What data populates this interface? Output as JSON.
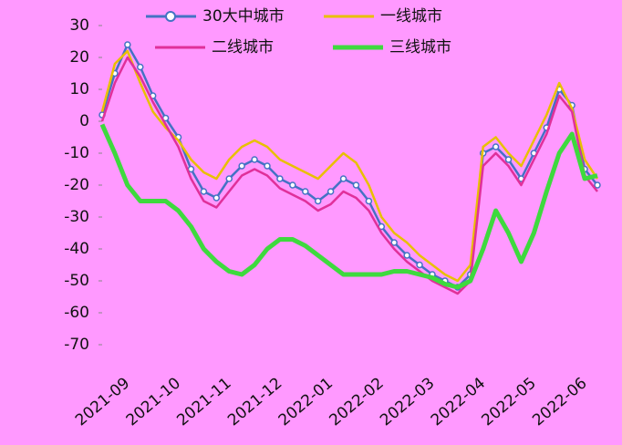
{
  "chart_data": {
    "type": "line",
    "categories": [
      null,
      null,
      "2021-09",
      null,
      null,
      null,
      "2021-10",
      null,
      null,
      null,
      "2021-11",
      null,
      null,
      null,
      "2021-12",
      null,
      null,
      null,
      "2022-01",
      null,
      null,
      null,
      "2022-02",
      null,
      null,
      null,
      "2022-03",
      null,
      null,
      null,
      "2022-04",
      null,
      null,
      null,
      "2022-05",
      null,
      null,
      null,
      "2022-06",
      null
    ],
    "series": [
      {
        "name": "30大中城市",
        "color": "#4472c4",
        "values": [
          2,
          15,
          24,
          17,
          8,
          1,
          -5,
          -15,
          -22,
          -24,
          -18,
          -14,
          -12,
          -14,
          -18,
          -20,
          -22,
          -25,
          -22,
          -18,
          -20,
          -25,
          -33,
          -38,
          -42,
          -45,
          -48,
          -50,
          -52,
          -48,
          -10,
          -8,
          -12,
          -18,
          -10,
          -2,
          10,
          5,
          -15,
          -20
        ]
      },
      {
        "name": "一线城市",
        "color": "#e8c000",
        "values": [
          3,
          18,
          22,
          12,
          3,
          -2,
          -6,
          -12,
          -16,
          -18,
          -12,
          -8,
          -6,
          -8,
          -12,
          -14,
          -16,
          -18,
          -14,
          -10,
          -13,
          -20,
          -30,
          -35,
          -38,
          -42,
          -45,
          -48,
          -50,
          -45,
          -8,
          -5,
          -10,
          -14,
          -6,
          2,
          12,
          4,
          -12,
          -18
        ]
      },
      {
        "name": "二线城市",
        "color": "#e0309a",
        "values": [
          0,
          12,
          20,
          14,
          6,
          -1,
          -8,
          -18,
          -25,
          -27,
          -22,
          -17,
          -15,
          -17,
          -21,
          -23,
          -25,
          -28,
          -26,
          -22,
          -24,
          -28,
          -35,
          -40,
          -44,
          -47,
          -50,
          -52,
          -54,
          -50,
          -14,
          -10,
          -14,
          -20,
          -12,
          -4,
          8,
          3,
          -17,
          -22
        ]
      },
      {
        "name": "三线城市",
        "color": "#3ed93e",
        "values": [
          -1,
          -10,
          -20,
          -25,
          -25,
          -25,
          -28,
          -33,
          -40,
          -44,
          -47,
          -48,
          -45,
          -40,
          -37,
          -37,
          -39,
          -42,
          -45,
          -48,
          -48,
          -48,
          -48,
          -47,
          -47,
          -48,
          -49,
          -51,
          -52,
          -50,
          -40,
          -28,
          -35,
          -44,
          -35,
          -22,
          -10,
          -4,
          -18,
          -17
        ]
      }
    ],
    "ylim": [
      -70,
      30
    ],
    "yticks": [
      30,
      20,
      10,
      0,
      -10,
      -20,
      -30,
      -40,
      -50,
      -60,
      -70
    ],
    "legend": "top",
    "grid": false
  }
}
